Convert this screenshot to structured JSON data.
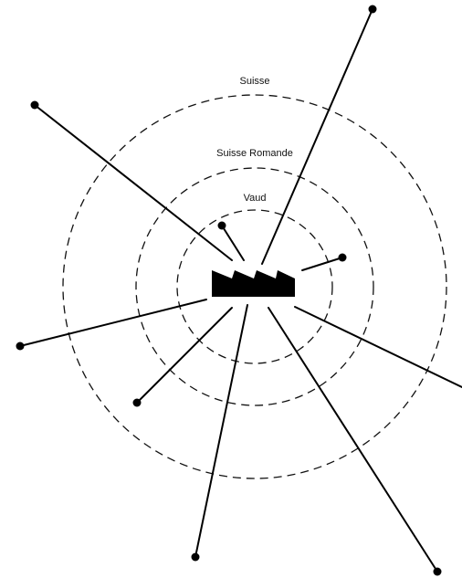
{
  "rings": [
    {
      "id": "vaud",
      "label": "Vaud"
    },
    {
      "id": "suisse-romande",
      "label": "Suisse Romande"
    },
    {
      "id": "suisse",
      "label": "Suisse"
    }
  ],
  "icons": {
    "center": "factory-icon",
    "endpoint": "dot-icon"
  },
  "colors": {
    "stroke": "#000000",
    "background": "#ffffff"
  }
}
